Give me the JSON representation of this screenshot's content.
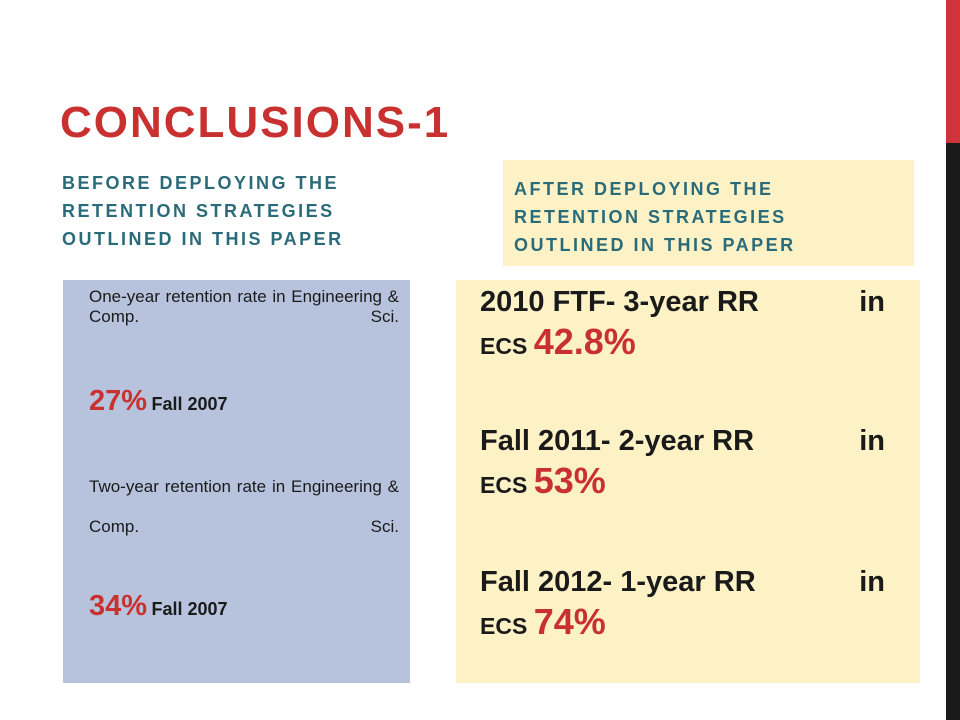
{
  "slide": {
    "title": "CONCLUSIONS-1",
    "before_heading": "BEFORE DEPLOYING THE RETENTION STRATEGIES OUTLINED IN THIS PAPER",
    "after_heading": "AFTER DEPLOYING THE RETENTION STRATEGIES OUTLINED IN THIS PAPER"
  },
  "before": {
    "item1_desc": "One-year retention rate in Engineering & Comp. Sci.",
    "item1_value": "27%",
    "item1_term": "Fall 2007",
    "item2_desc": "Two-year retention rate in Engineering & Comp. Sci.",
    "item2_value": "34%",
    "item2_term": "Fall 2007"
  },
  "after": {
    "items": [
      {
        "label": "2010 FTF- 3-year RR",
        "suffix": "in",
        "ecs": "ECS",
        "pct": "42.8%"
      },
      {
        "label": "Fall 2011- 2-year RR",
        "suffix": "in",
        "ecs": "ECS",
        "pct": "53%"
      },
      {
        "label": "Fall 2012- 1-year RR",
        "suffix": "in",
        "ecs": "ECS",
        "pct": "74%"
      }
    ]
  },
  "colors": {
    "accent_red": "#c8312f",
    "heading_teal": "#2a6b7a",
    "before_panel": "#b7c3dd",
    "after_panel": "#fdf1c6"
  }
}
